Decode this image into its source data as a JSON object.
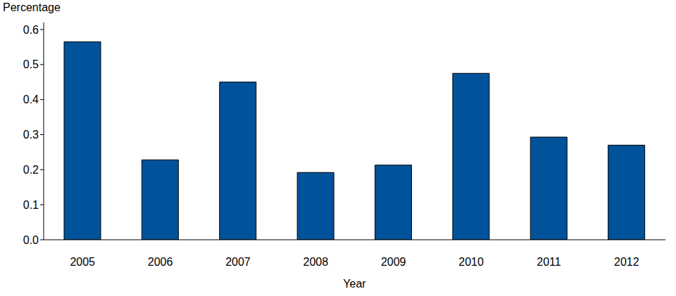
{
  "chart_data": {
    "type": "bar",
    "xlabel": "Year",
    "ylabel": "Percentage",
    "categories": [
      "2005",
      "2006",
      "2007",
      "2008",
      "2009",
      "2010",
      "2011",
      "2012"
    ],
    "values": [
      0.565,
      0.228,
      0.45,
      0.192,
      0.213,
      0.475,
      0.293,
      0.27
    ],
    "color": "#00539b",
    "ylim": [
      0,
      0.62
    ],
    "yticks": [
      {
        "value": 0,
        "label": "0.0"
      },
      0.1,
      0.2,
      0.3,
      0.4,
      0.5,
      0.6
    ],
    "grid": false
  }
}
